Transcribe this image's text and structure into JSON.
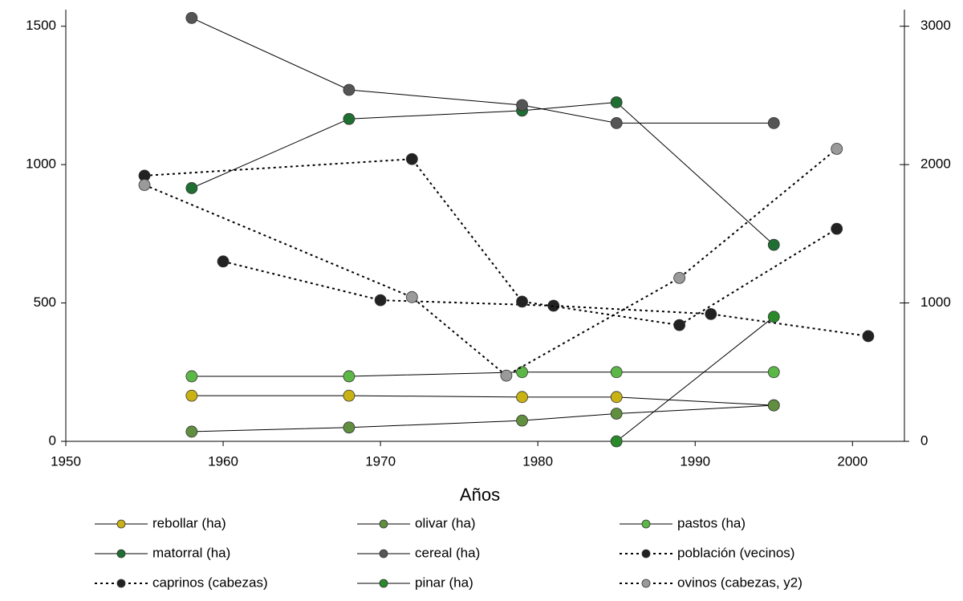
{
  "chart_data": {
    "type": "line",
    "x_label": "Años",
    "xlim": [
      1950,
      2003.3
    ],
    "xticks": [
      1950,
      1960,
      1970,
      1980,
      1990,
      2000
    ],
    "ylim": [
      0,
      1560
    ],
    "yticks": [
      0,
      500,
      1000,
      1500
    ],
    "y2lim": [
      0,
      3120
    ],
    "y2ticks": [
      0,
      1000,
      2000,
      3000
    ],
    "series": [
      {
        "name": "rebollar (ha)",
        "color": "#c9b214",
        "dashed": false,
        "x": [
          1958,
          1968,
          1979,
          1985,
          1995
        ],
        "values": [
          165,
          165,
          160,
          160,
          130
        ]
      },
      {
        "name": "olivar (ha)",
        "color": "#5f8f3f",
        "dashed": false,
        "x": [
          1958,
          1968,
          1979,
          1985,
          1995
        ],
        "values": [
          35,
          50,
          75,
          100,
          130
        ]
      },
      {
        "name": "pastos (ha)",
        "color": "#5cb846",
        "dashed": false,
        "x": [
          1958,
          1968,
          1979,
          1985,
          1995
        ],
        "values": [
          235,
          235,
          250,
          250,
          250
        ]
      },
      {
        "name": "matorral (ha)",
        "color": "#1f6e32",
        "dashed": false,
        "x": [
          1958,
          1968,
          1979,
          1985,
          1995
        ],
        "values": [
          915,
          1165,
          1195,
          1225,
          710
        ]
      },
      {
        "name": "cereal (ha)",
        "color": "#555555",
        "dashed": false,
        "x": [
          1958,
          1968,
          1979,
          1985,
          1995
        ],
        "values": [
          1530,
          1270,
          1215,
          1150,
          1150
        ]
      },
      {
        "name": "población (vecinos)",
        "color": "#222222",
        "dashed": true,
        "x": [
          1960,
          1970,
          1981,
          1991,
          2001
        ],
        "values": [
          650,
          510,
          490,
          460,
          380
        ]
      },
      {
        "name": "caprinos (cabezas)",
        "color": "#222222",
        "dashed": true,
        "x": [
          1955,
          1972,
          1979,
          1989,
          1999
        ],
        "values": [
          960,
          1020,
          505,
          420,
          768
        ]
      },
      {
        "name": "pinar (ha)",
        "color": "#2a8a2a",
        "dashed": false,
        "x": [
          1985,
          1995
        ],
        "values": [
          0,
          450
        ]
      },
      {
        "name": "ovinos (cabezas, y2)",
        "color": "#9a9a9a",
        "dashed": true,
        "axis": "y2",
        "x": [
          1955,
          1972,
          1978,
          1989,
          1999
        ],
        "values": [
          1853,
          1042,
          475,
          1181,
          2114
        ]
      }
    ]
  }
}
